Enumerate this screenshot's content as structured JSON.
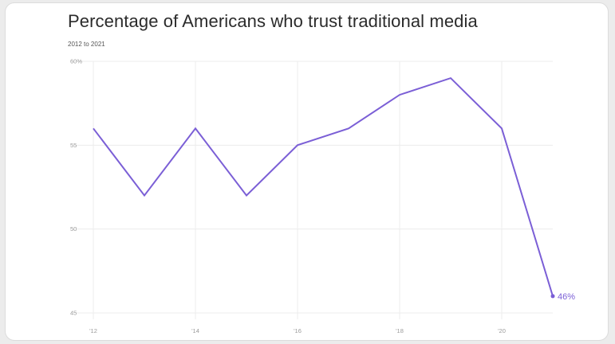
{
  "chart_data": {
    "type": "line",
    "title": "Percentage of Americans who trust traditional media",
    "subtitle": "2012 to 2021",
    "x": [
      2012,
      2013,
      2014,
      2015,
      2016,
      2017,
      2018,
      2019,
      2020,
      2021
    ],
    "x_tick_labels": [
      "'12",
      "'14",
      "'16",
      "'18",
      "'20"
    ],
    "x_tick_values": [
      2012,
      2014,
      2016,
      2018,
      2020
    ],
    "y_tick_labels": [
      "60%",
      "55",
      "50",
      "45"
    ],
    "y_tick_values": [
      60,
      55,
      50,
      45
    ],
    "xlim": [
      2012,
      2021
    ],
    "ylim": [
      45,
      60
    ],
    "grid": true,
    "series": [
      {
        "values": [
          56,
          52,
          56,
          52,
          55,
          56,
          58,
          59,
          56,
          46
        ],
        "color": "#7b5fd6"
      }
    ],
    "end_label": "46%"
  }
}
